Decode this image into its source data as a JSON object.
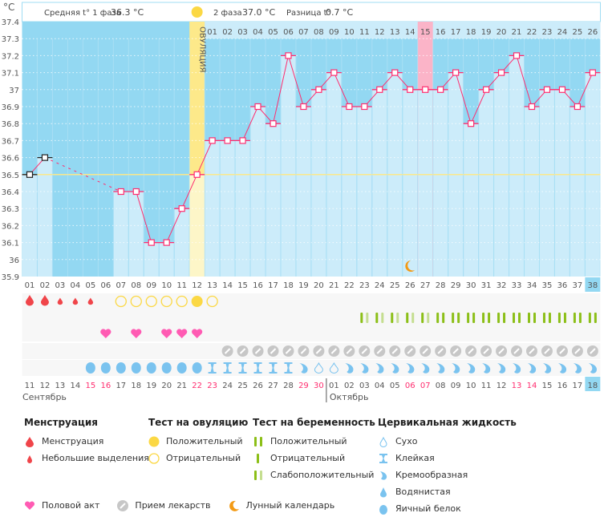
{
  "header": {
    "unit": "°C",
    "phase1_label": "Средняя t° 1 фаза",
    "phase1_value": "36.3 °C",
    "phase2_label": "2 фаза",
    "phase2_value": "37.0 °C",
    "diff_label": "Разница t°",
    "diff_value": "0.7 °C",
    "ovulation_label": "ОВУЛЯЦИЯ"
  },
  "chart_data": {
    "type": "bar",
    "ylim": [
      35.9,
      37.4
    ],
    "yticks": [
      "37.4",
      "37.3",
      "37.2",
      "37.1",
      "37",
      "36.9",
      "36.8",
      "36.7",
      "36.6",
      "36.5",
      "36.4",
      "36.3",
      "36.2",
      "36.1",
      "36",
      "35.9"
    ],
    "cover_line": 36.5,
    "ovulation_day": 12,
    "highlight_day": 27,
    "today_day": 38,
    "moon_day": 26,
    "days": [
      "01",
      "02",
      "03",
      "04",
      "05",
      "06",
      "07",
      "08",
      "09",
      "10",
      "11",
      "12",
      "13",
      "14",
      "15",
      "16",
      "17",
      "18",
      "19",
      "20",
      "21",
      "22",
      "23",
      "24",
      "25",
      "26",
      "27",
      "28",
      "29",
      "30",
      "31",
      "32",
      "33",
      "34",
      "35",
      "36",
      "37",
      "38"
    ],
    "phase2_days": [
      "01",
      "02",
      "03",
      "04",
      "05",
      "06",
      "07",
      "08",
      "09",
      "10",
      "11",
      "12",
      "13",
      "14",
      "15",
      "16",
      "17",
      "18",
      "19",
      "20",
      "21",
      "22",
      "23",
      "24",
      "25",
      "26"
    ],
    "temperatures": [
      36.5,
      36.6,
      null,
      null,
      null,
      null,
      36.4,
      36.4,
      36.1,
      36.1,
      36.3,
      36.5,
      36.7,
      36.7,
      36.7,
      36.9,
      36.8,
      37.2,
      36.9,
      37.0,
      37.1,
      36.9,
      36.9,
      37.0,
      37.1,
      37.0,
      37.0,
      37.0,
      37.1,
      36.8,
      37.0,
      37.1,
      37.2,
      36.9,
      37.0,
      37.0,
      36.9,
      37.1
    ],
    "excluded_days": [
      1,
      2
    ],
    "dates": [
      "11",
      "12",
      "13",
      "14",
      "15",
      "16",
      "17",
      "18",
      "19",
      "20",
      "21",
      "22",
      "23",
      "24",
      "25",
      "26",
      "27",
      "28",
      "29",
      "30",
      "01",
      "02",
      "03",
      "04",
      "05",
      "06",
      "07",
      "08",
      "09",
      "10",
      "11",
      "12",
      "13",
      "14",
      "15",
      "16",
      "17",
      "18"
    ],
    "weekend_days": [
      5,
      6,
      12,
      13,
      19,
      20,
      26,
      27,
      33,
      34
    ],
    "months": [
      "Сентябрь",
      "Октябрь"
    ],
    "menstruation": {
      "heavy": [
        1,
        2
      ],
      "light": [
        3,
        4,
        5
      ]
    },
    "ovulation_test": {
      "positive": [
        12
      ],
      "negative": [
        7,
        8,
        9,
        10,
        11,
        13
      ]
    },
    "pregnancy_test": {
      "weak": [
        23,
        24,
        25,
        26,
        27
      ],
      "positive": [
        28,
        29,
        30,
        31,
        32,
        33,
        34,
        35,
        36,
        37,
        38
      ]
    },
    "intercourse": [
      6,
      8,
      10,
      11,
      12
    ],
    "medication": [
      14,
      15,
      16,
      17,
      18,
      19,
      20,
      21,
      22,
      23,
      24,
      25,
      26,
      27,
      28,
      29,
      30,
      31,
      32,
      33,
      34,
      35,
      36,
      37,
      38
    ],
    "fluid": {
      "egg_white": [
        5,
        6,
        7,
        8,
        9,
        10,
        11,
        12
      ],
      "sticky": [
        13,
        14,
        15,
        16,
        17,
        18
      ],
      "creamy": [
        19,
        22,
        23,
        24,
        25,
        26,
        27,
        28,
        29,
        30,
        31,
        32,
        33,
        34,
        35,
        36,
        37,
        38
      ],
      "dry": [
        20,
        21
      ]
    }
  },
  "colors": {
    "bg_dark": "#93d8f2",
    "bar": "#ccecfa",
    "line": "#ff2d6f",
    "ovulation": "#fde98a",
    "highlight": "#fbb4c8",
    "blood": "#f0454a",
    "yellow": "#fbd844",
    "heart": "#ff5bb3",
    "pill": "#c7c7c7",
    "green": "#8cbf18",
    "green_light": "#c5de90",
    "fluid": "#7ac3ef",
    "weekend": "#ff2d6f"
  },
  "legend": {
    "menstruation": {
      "title": "Менструация",
      "items": [
        "Менструация",
        "Небольшие выделения"
      ]
    },
    "ovulation": {
      "title": "Тест на овуляцию",
      "items": [
        "Положительный",
        "Отрицательный"
      ]
    },
    "pregnancy": {
      "title": "Тест на беременность",
      "items": [
        "Положительный",
        "Отрицательный",
        "Слабоположительный"
      ]
    },
    "fluid": {
      "title": "Цервикальная жидкость",
      "items": [
        "Сухо",
        "Клейкая",
        "Кремообразная",
        "Водянистая",
        "Яичный белок"
      ]
    },
    "other": [
      "Половой акт",
      "Прием лекарств",
      "Лунный календарь"
    ]
  }
}
